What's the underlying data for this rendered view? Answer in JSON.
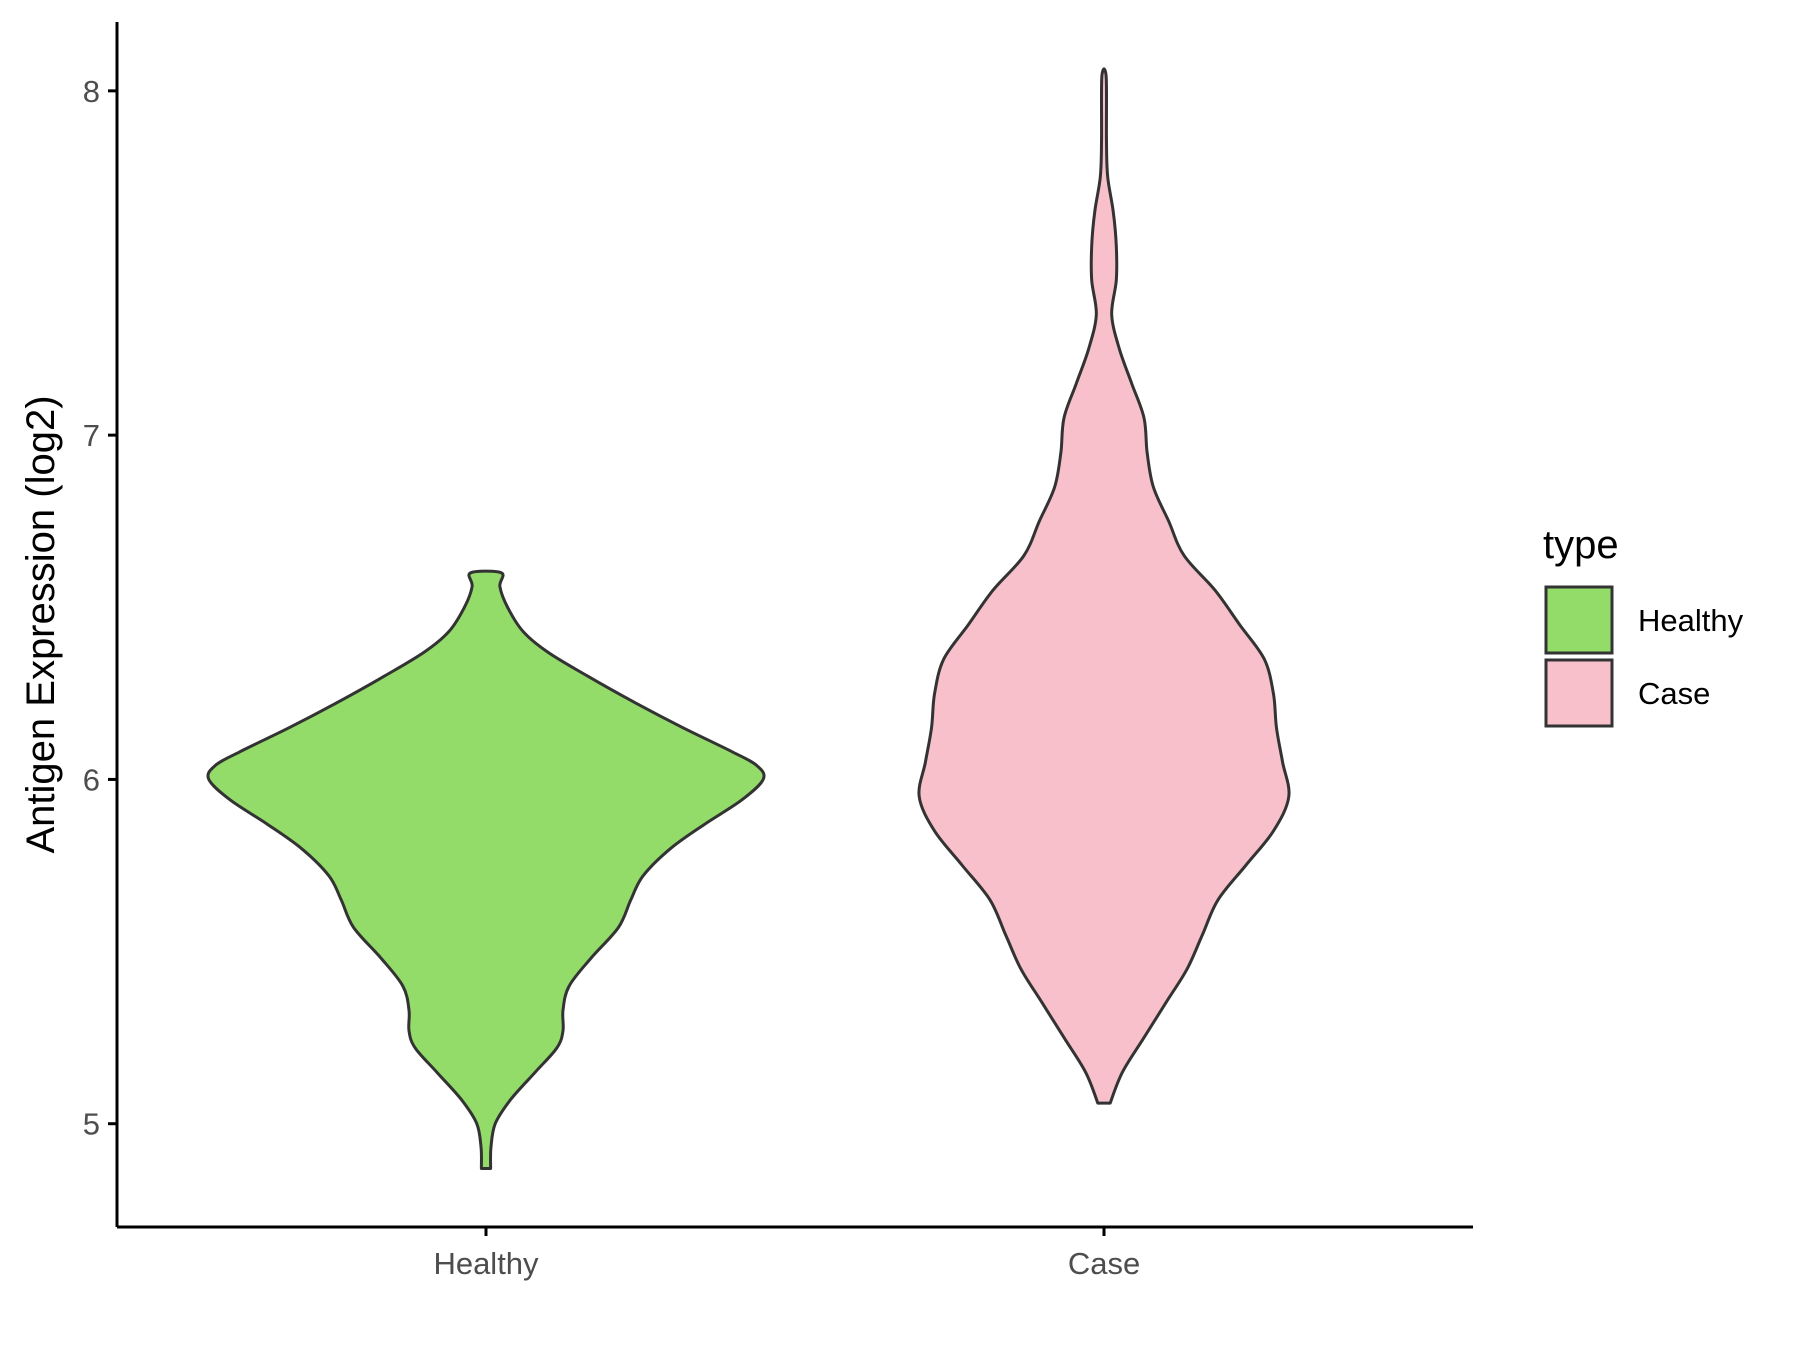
{
  "chart_data": {
    "type": "violin",
    "title": "",
    "xlabel": "",
    "ylabel": "Antigen Expression (log2)",
    "ylim": [
      4.7,
      8.2
    ],
    "yticks": [
      5,
      6,
      7,
      8
    ],
    "categories": [
      "Healthy",
      "Case"
    ],
    "grid": false,
    "legend": {
      "title": "type",
      "position": "right",
      "entries": [
        {
          "label": "Healthy",
          "color": "#93dc6a"
        },
        {
          "label": "Case",
          "color": "#f7c0cb"
        }
      ]
    },
    "outline_color": "#333333",
    "series": [
      {
        "name": "Healthy",
        "color": "#93dc6a",
        "profile": [
          [
            4.87,
            0.015
          ],
          [
            4.93,
            0.016
          ],
          [
            5.0,
            0.03
          ],
          [
            5.07,
            0.08
          ],
          [
            5.15,
            0.16
          ],
          [
            5.22,
            0.23
          ],
          [
            5.27,
            0.25
          ],
          [
            5.33,
            0.25
          ],
          [
            5.4,
            0.27
          ],
          [
            5.48,
            0.34
          ],
          [
            5.57,
            0.43
          ],
          [
            5.65,
            0.47
          ],
          [
            5.72,
            0.51
          ],
          [
            5.8,
            0.6
          ],
          [
            5.87,
            0.71
          ],
          [
            5.94,
            0.83
          ],
          [
            6.0,
            0.9
          ],
          [
            6.04,
            0.88
          ],
          [
            6.08,
            0.8
          ],
          [
            6.15,
            0.64
          ],
          [
            6.22,
            0.49
          ],
          [
            6.3,
            0.33
          ],
          [
            6.37,
            0.2
          ],
          [
            6.43,
            0.12
          ],
          [
            6.5,
            0.07
          ],
          [
            6.56,
            0.045
          ],
          [
            6.6,
            0.05
          ]
        ]
      },
      {
        "name": "Case",
        "color": "#f7c0cb",
        "profile": [
          [
            5.06,
            0.02
          ],
          [
            5.15,
            0.06
          ],
          [
            5.25,
            0.13
          ],
          [
            5.35,
            0.2
          ],
          [
            5.45,
            0.27
          ],
          [
            5.55,
            0.32
          ],
          [
            5.65,
            0.37
          ],
          [
            5.75,
            0.46
          ],
          [
            5.85,
            0.55
          ],
          [
            5.95,
            0.6
          ],
          [
            6.05,
            0.58
          ],
          [
            6.15,
            0.56
          ],
          [
            6.25,
            0.55
          ],
          [
            6.35,
            0.52
          ],
          [
            6.45,
            0.44
          ],
          [
            6.55,
            0.36
          ],
          [
            6.65,
            0.26
          ],
          [
            6.75,
            0.21
          ],
          [
            6.85,
            0.16
          ],
          [
            6.95,
            0.14
          ],
          [
            7.05,
            0.13
          ],
          [
            7.15,
            0.09
          ],
          [
            7.25,
            0.05
          ],
          [
            7.35,
            0.025
          ],
          [
            7.45,
            0.04
          ],
          [
            7.55,
            0.04
          ],
          [
            7.65,
            0.03
          ],
          [
            7.75,
            0.012
          ],
          [
            7.85,
            0.008
          ],
          [
            8.04,
            0.007
          ]
        ]
      }
    ]
  }
}
